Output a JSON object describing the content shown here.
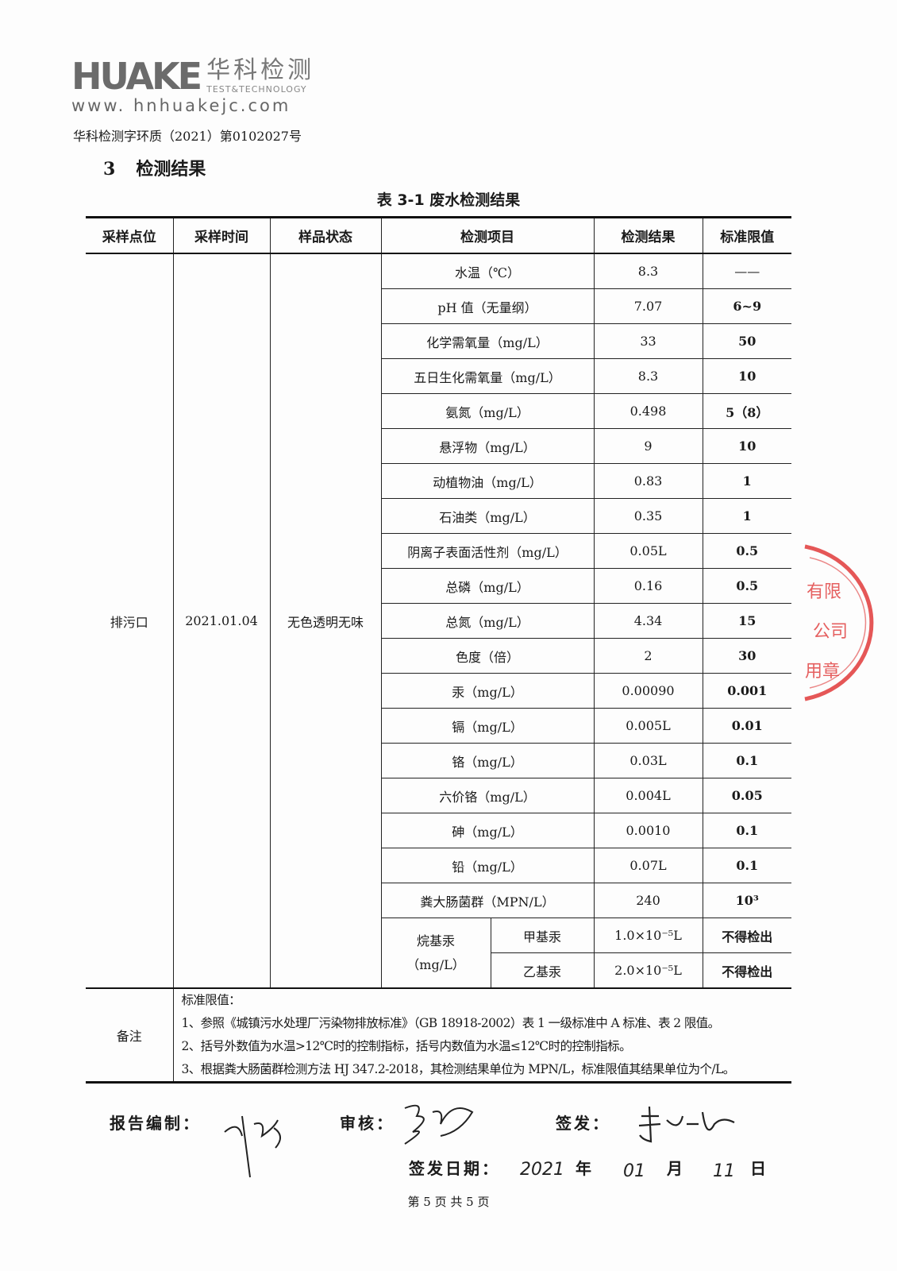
{
  "logo": {
    "brand": "HUAKE",
    "cn": "华科检测",
    "en": "TEST&TECHNOLOGY",
    "web": "www. hnhuakejc.com"
  },
  "report_no": "华科检测字环质（2021）第0102027号",
  "section": {
    "number": "3",
    "title": "检测结果"
  },
  "table_title": "表 3-1  废水检测结果",
  "headers": [
    "采样点位",
    "采样时间",
    "样品状态",
    "检测项目",
    "检测结果",
    "标准限值"
  ],
  "sample": {
    "point": "排污口",
    "time": "2021.01.04",
    "state": "无色透明无味"
  },
  "rows": [
    {
      "item": "水温（℃）",
      "result": "8.3",
      "limit": "——"
    },
    {
      "item": "pH 值（无量纲）",
      "result": "7.07",
      "limit": "6~9"
    },
    {
      "item": "化学需氧量（mg/L）",
      "result": "33",
      "limit": "50"
    },
    {
      "item": "五日生化需氧量（mg/L）",
      "result": "8.3",
      "limit": "10"
    },
    {
      "item": "氨氮（mg/L）",
      "result": "0.498",
      "limit": "5（8）"
    },
    {
      "item": "悬浮物（mg/L）",
      "result": "9",
      "limit": "10"
    },
    {
      "item": "动植物油（mg/L）",
      "result": "0.83",
      "limit": "1"
    },
    {
      "item": "石油类（mg/L）",
      "result": "0.35",
      "limit": "1"
    },
    {
      "item": "阴离子表面活性剂（mg/L）",
      "result": "0.05L",
      "limit": "0.5"
    },
    {
      "item": "总磷（mg/L）",
      "result": "0.16",
      "limit": "0.5"
    },
    {
      "item": "总氮（mg/L）",
      "result": "4.34",
      "limit": "15"
    },
    {
      "item": "色度（倍）",
      "result": "2",
      "limit": "30"
    },
    {
      "item": "汞（mg/L）",
      "result": "0.00090",
      "limit": "0.001"
    },
    {
      "item": "镉（mg/L）",
      "result": "0.005L",
      "limit": "0.01"
    },
    {
      "item": "铬（mg/L）",
      "result": "0.03L",
      "limit": "0.1"
    },
    {
      "item": "六价铬（mg/L）",
      "result": "0.004L",
      "limit": "0.05"
    },
    {
      "item": "砷（mg/L）",
      "result": "0.0010",
      "limit": "0.1"
    },
    {
      "item": "铅（mg/L）",
      "result": "0.07L",
      "limit": "0.1"
    },
    {
      "item": "粪大肠菌群（MPN/L）",
      "result": "240",
      "limit": "10³"
    }
  ],
  "alkyl": {
    "group": "烷基汞",
    "unit": "（mg/L）",
    "subrows": [
      {
        "item": "甲基汞",
        "result": "1.0×10⁻⁵L",
        "limit": "不得检出"
      },
      {
        "item": "乙基汞",
        "result": "2.0×10⁻⁵L",
        "limit": "不得检出"
      }
    ]
  },
  "notes": {
    "label": "备注",
    "lines": [
      "标准限值：",
      "1、参照《城镇污水处理厂污染物排放标准》（GB 18918-2002）表 1 一级标准中 A 标准、表 2 限值。",
      "2、括号外数值为水温>12℃时的控制指标，括号内数值为水温≤12℃时的控制指标。",
      "3、根据粪大肠菌群检测方法 HJ 347.2-2018，其检测结果单位为 MPN/L，标准限值其结果单位为个/L。"
    ]
  },
  "signatures": {
    "compiler_label": "报告编制：",
    "reviewer_label": "审核：",
    "issuer_label": "签发：",
    "date_label": "签发日期：",
    "year": "2021",
    "year_unit": "年",
    "month": "01",
    "month_unit": "月",
    "day": "11",
    "day_unit": "日"
  },
  "stamp_color": "#e03a3a",
  "footer": "第 5 页 共 5 页"
}
